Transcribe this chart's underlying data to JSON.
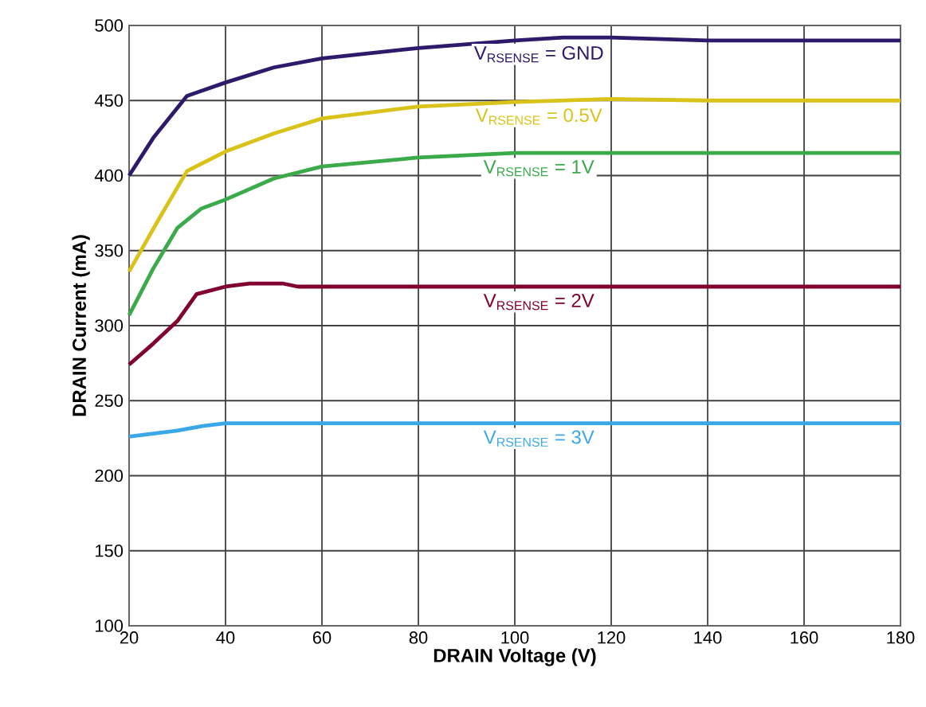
{
  "chart_data": {
    "type": "line",
    "xlabel": "DRAIN Voltage (V)",
    "ylabel": "DRAIN Current (mA)",
    "xlim": [
      20,
      180
    ],
    "ylim": [
      100,
      500
    ],
    "xticks": [
      20,
      40,
      60,
      80,
      100,
      120,
      140,
      160,
      180
    ],
    "yticks": [
      100,
      150,
      200,
      250,
      300,
      350,
      400,
      450,
      500
    ],
    "grid": true,
    "marker": "none",
    "line_style": "solid",
    "series": [
      {
        "name": "V$_{RSENSE}$ = GND",
        "color": "#2e1a6b",
        "x": [
          20,
          25,
          32,
          40,
          50,
          60,
          80,
          100,
          110,
          120,
          140,
          180
        ],
        "values": [
          400,
          425,
          453,
          462,
          472,
          478,
          485,
          490,
          492,
          492,
          490,
          490
        ]
      },
      {
        "name": "V$_{RSENSE}$ = 0.5V",
        "color": "#d9c31a",
        "x": [
          20,
          26,
          32,
          40,
          50,
          55,
          60,
          80,
          100,
          120,
          140,
          180
        ],
        "values": [
          336,
          370,
          403,
          416,
          428,
          433,
          438,
          446,
          449,
          451,
          450,
          450
        ]
      },
      {
        "name": "V$_{RSENSE}$ = 1V",
        "color": "#3aaa4a",
        "x": [
          20,
          25,
          30,
          35,
          40,
          50,
          60,
          80,
          100,
          140,
          180
        ],
        "values": [
          307,
          338,
          365,
          378,
          384,
          398,
          406,
          412,
          415,
          415,
          415
        ]
      },
      {
        "name": "V$_{RSENSE}$ = 2V",
        "color": "#800030",
        "x": [
          20,
          25,
          30,
          34,
          40,
          45,
          52,
          55,
          80,
          180
        ],
        "values": [
          274,
          288,
          303,
          321,
          326,
          328,
          328,
          326,
          326,
          326
        ]
      },
      {
        "name": "V$_{RSENSE}$ = 3V",
        "color": "#3aa8e8",
        "x": [
          20,
          30,
          35,
          40,
          60,
          180
        ],
        "values": [
          226,
          230,
          233,
          235,
          235,
          235
        ]
      }
    ]
  }
}
